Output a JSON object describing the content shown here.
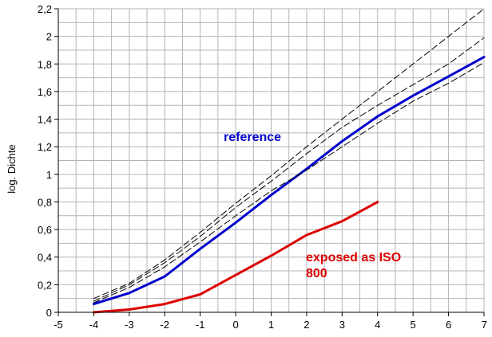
{
  "chart_data": {
    "type": "line",
    "title": "",
    "xlabel": "",
    "ylabel": "log. Dichte",
    "xlim": [
      -5,
      7
    ],
    "ylim": [
      0,
      2.2
    ],
    "grid": true,
    "x_ticks": [
      -5,
      -4,
      -3,
      -2,
      -1,
      0,
      1,
      2,
      3,
      4,
      5,
      6,
      7
    ],
    "x_tick_labels": [
      "-5",
      "-4",
      "-3",
      "-2",
      "-1",
      "0",
      "1",
      "2",
      "3",
      "4",
      "5",
      "6",
      "7"
    ],
    "y_ticks": [
      0,
      0.2,
      0.4,
      0.6,
      0.8,
      1,
      1.2,
      1.4,
      1.6,
      1.8,
      2,
      2.2
    ],
    "y_tick_labels": [
      "0",
      "0,2",
      "0,4",
      "0,6",
      "0,8",
      "1",
      "1,2",
      "1,4",
      "1,6",
      "1,8",
      "2",
      "2,2"
    ],
    "series": [
      {
        "color": "#0000cc",
        "style": "solid",
        "x": [
          -4,
          -3,
          -2,
          -1,
          0,
          1,
          2,
          3,
          4,
          5,
          6,
          7
        ],
        "y": [
          0.06,
          0.14,
          0.26,
          0.46,
          0.65,
          0.85,
          1.04,
          1.24,
          1.42,
          1.57,
          1.71,
          1.85
        ]
      },
      {
        "color": "#dd0000",
        "style": "solid",
        "x": [
          -4,
          -3,
          -2,
          -1,
          0,
          1,
          2,
          3,
          4
        ],
        "y": [
          0.0,
          0.02,
          0.06,
          0.13,
          0.27,
          0.41,
          0.56,
          0.66,
          0.8
        ]
      },
      {
        "color": "#000000",
        "style": "dashed",
        "x": [
          -4,
          -3,
          -2,
          -1,
          0,
          1,
          2,
          3,
          4,
          5,
          6,
          7
        ],
        "y": [
          0.1,
          0.21,
          0.38,
          0.58,
          0.79,
          0.99,
          1.2,
          1.4,
          1.6,
          1.8,
          2.0,
          2.2
        ]
      },
      {
        "color": "#000000",
        "style": "dashed",
        "x": [
          -4,
          -3,
          -2,
          -1,
          0,
          1,
          2,
          3,
          4,
          5,
          6,
          7
        ],
        "y": [
          0.08,
          0.2,
          0.36,
          0.55,
          0.76,
          0.95,
          1.15,
          1.34,
          1.5,
          1.65,
          1.8,
          1.99
        ]
      },
      {
        "color": "#000000",
        "style": "dashed",
        "x": [
          -4,
          -3,
          -2,
          -1,
          0,
          1,
          2,
          3,
          4,
          5,
          6,
          7
        ],
        "y": [
          0.07,
          0.18,
          0.33,
          0.51,
          0.7,
          0.88,
          1.03,
          1.2,
          1.37,
          1.53,
          1.66,
          1.81
        ]
      }
    ],
    "annotations": [
      {
        "text": "reference",
        "color": "#0000cc"
      },
      {
        "text": "exposed as ISO",
        "color": "#dd0000"
      },
      {
        "text": "800",
        "color": "#dd0000"
      }
    ]
  }
}
